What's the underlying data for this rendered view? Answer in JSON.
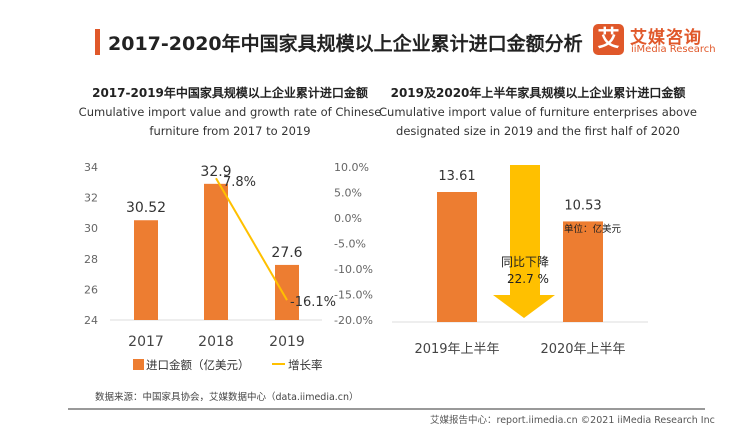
{
  "header": {
    "title": "2017-2020年中国家具规模以上企业累计进口金额分析",
    "logo_mark": "艾",
    "logo_cn": "艾媒咨询",
    "logo_en": "iiMedia Research"
  },
  "colors": {
    "bar": "#ed7d31",
    "line": "#ffc000",
    "accent": "#e0582a"
  },
  "chart_data": [
    {
      "type": "bar+line",
      "title": "2017-2019年中国家具规模以上企业累计进口金额",
      "subtitle": [
        "Cumulative import value and growth rate of Chinese",
        "furniture from 2017 to 2019"
      ],
      "categories": [
        "2017",
        "2018",
        "2019"
      ],
      "series": [
        {
          "name": "进口金额（亿美元）",
          "type": "bar",
          "axis": "left",
          "values": [
            30.52,
            32.9,
            27.6
          ],
          "labels": [
            "30.52",
            "32.9",
            "27.6"
          ]
        },
        {
          "name": "增长率",
          "type": "line",
          "axis": "right",
          "x": [
            "2018",
            "2019"
          ],
          "values": [
            7.8,
            -16.1
          ],
          "labels": [
            "7.8%",
            "-16.1%"
          ]
        }
      ],
      "left_axis": {
        "ylim": [
          24,
          34
        ],
        "ticks": [
          "24",
          "26",
          "28",
          "30",
          "32",
          "34"
        ]
      },
      "right_axis": {
        "ylim": [
          -20,
          10
        ],
        "ticks": [
          "-20.0%",
          "-15.0%",
          "-10.0%",
          "-5.0%",
          "0.0%",
          "5.0%",
          "10.0%"
        ]
      },
      "legend": "bottom"
    },
    {
      "type": "bar",
      "title": "2019及2020年上半年家具规模以上企业累计进口金额",
      "subtitle": [
        "Cumulative import value of furniture enterprises above",
        "designated size in 2019 and the first half of 2020"
      ],
      "categories": [
        "2019年上半年",
        "2020年上半年"
      ],
      "values": [
        13.61,
        10.53
      ],
      "labels": [
        "13.61",
        "10.53"
      ],
      "unit_label": "单位：亿美元",
      "annotation": [
        "同比下降",
        "22.7 %"
      ]
    }
  ],
  "footer": {
    "source": "数据来源：中国家具协会，艾媒数据中心（data.iimedia.cn）",
    "copyright": "艾媒报告中心：report.iimedia.cn   ©2021  iiMedia Research  Inc"
  }
}
